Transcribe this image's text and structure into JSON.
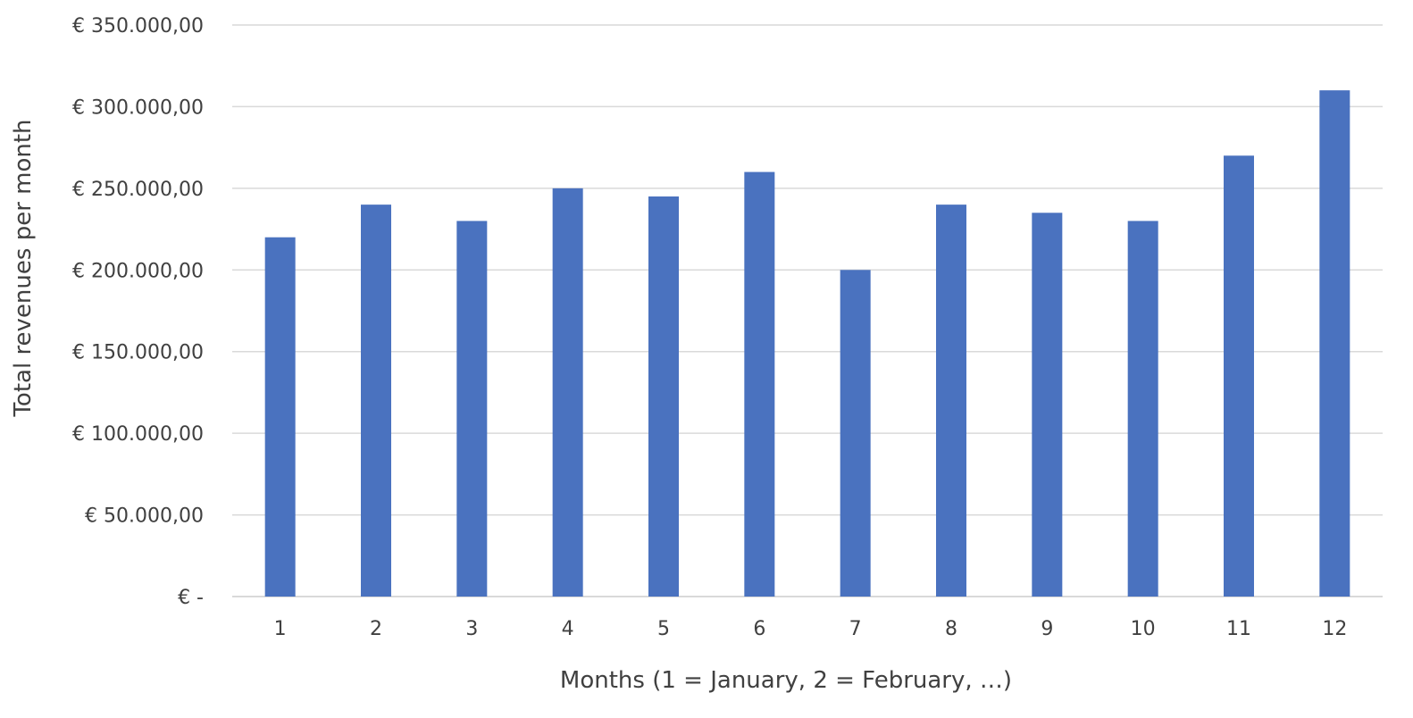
{
  "chart_data": {
    "type": "bar",
    "categories": [
      "1",
      "2",
      "3",
      "4",
      "5",
      "6",
      "7",
      "8",
      "9",
      "10",
      "11",
      "12"
    ],
    "values": [
      220000,
      240000,
      230000,
      250000,
      245000,
      260000,
      200000,
      240000,
      235000,
      230000,
      270000,
      310000
    ],
    "title": "",
    "xlabel": "Months (1 = January, 2 = February, …)",
    "ylabel": "Total revenues per month",
    "ylim": [
      0,
      350000
    ],
    "y_ticks": [
      0,
      50000,
      100000,
      150000,
      200000,
      250000,
      300000,
      350000
    ],
    "y_tick_labels": [
      "€ -",
      "€ 50.000,00",
      "€ 100.000,00",
      "€ 150.000,00",
      "€ 200.000,00",
      "€ 250.000,00",
      "€ 300.000,00",
      "€ 350.000,00"
    ],
    "grid": true,
    "legend": "none",
    "bar_color": "#4a72bf",
    "grid_color": "#d9d9d9"
  }
}
